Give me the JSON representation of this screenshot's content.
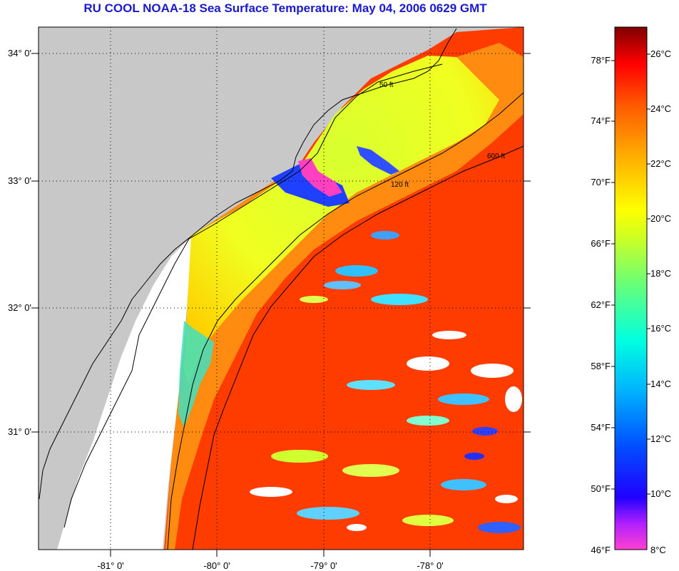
{
  "title": "RU COOL  NOAA-18  Sea Surface Temperature:  May 04, 2006 0629 GMT",
  "lat_labels": [
    "34° 0'",
    "33° 0'",
    "32° 0'",
    "31° 0'"
  ],
  "lon_labels": [
    "-81° 0'",
    "-80° 0'",
    "-79° 0'",
    "-78° 0'"
  ],
  "isobath_labels": [
    "50 ft",
    "120 ft",
    "600 ft"
  ],
  "colorbar": {
    "fahrenheit": [
      "78°F",
      "74°F",
      "70°F",
      "66°F",
      "62°F",
      "58°F",
      "54°F",
      "50°F",
      "46°F"
    ],
    "celsius": [
      "26°C",
      "24°C",
      "22°C",
      "20°C",
      "18°C",
      "16°C",
      "14°C",
      "12°C",
      "10°C",
      "8°C"
    ],
    "range_c": [
      8,
      27
    ],
    "colors": [
      "#ff3cc8",
      "#8000ff",
      "#0000ff",
      "#0080ff",
      "#00ffff",
      "#40ff80",
      "#c8ff00",
      "#ffff00",
      "#ffa000",
      "#ff4000",
      "#ff0000",
      "#8a0000"
    ]
  },
  "colors": {
    "land": "#c8c8c8",
    "title": "#1a1acc",
    "no_data": "#ffffff",
    "warm_water": "#ff3a00",
    "shelf_water": "#e0ff30",
    "cold_patch": "#2040ff"
  }
}
